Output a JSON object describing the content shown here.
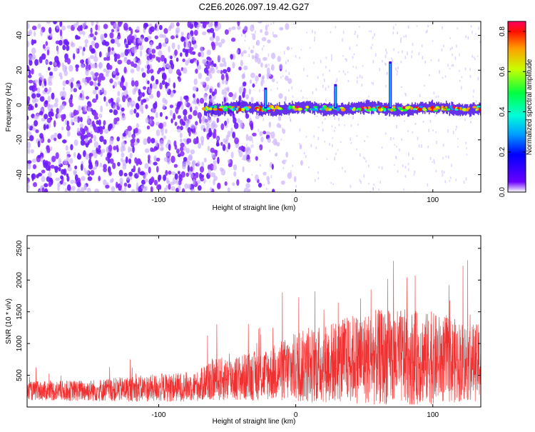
{
  "title": "C2E6.2026.097.19.42.G27",
  "colors": {
    "snr_line": "#f03030",
    "axis": "#000000",
    "background": "#ffffff"
  },
  "chart_data": [
    {
      "type": "heatmap",
      "name": "spectrogram",
      "xlabel": "Height of straight line (km)",
      "ylabel": "Frequency (Hz)",
      "xlim": [
        -196,
        135
      ],
      "ylim": [
        -50,
        48
      ],
      "xticks": [
        -100,
        0,
        100
      ],
      "yticks": [
        -40,
        -20,
        0,
        20,
        40
      ],
      "colorbar": {
        "label": "Normalized spectral amplitude",
        "range": [
          0.0,
          0.85
        ],
        "ticks": [
          0.0,
          0.2,
          0.4,
          0.6,
          0.8
        ]
      },
      "features": {
        "noise_region_x": [
          -196,
          -30
        ],
        "signal_band_start_x": -67,
        "signal_band_freq": -2,
        "spikes": [
          {
            "x": -22,
            "freq": 10
          },
          {
            "x": 29,
            "freq": 12
          },
          {
            "x": 69,
            "freq": 25
          }
        ]
      }
    },
    {
      "type": "line",
      "name": "snr",
      "xlabel": "Height of straight line (km)",
      "ylabel": "SNR (10 * v/v)",
      "xlim": [
        -196,
        135
      ],
      "ylim": [
        0,
        2700
      ],
      "xticks": [
        -100,
        0,
        100
      ],
      "yticks": [
        500,
        1000,
        1500,
        2000,
        2500
      ],
      "envelope": {
        "x": [
          -196,
          -150,
          -100,
          -70,
          -65,
          -40,
          -20,
          0,
          20,
          40,
          60,
          80,
          100,
          120,
          135
        ],
        "mean": [
          250,
          260,
          300,
          330,
          420,
          460,
          520,
          620,
          680,
          760,
          780,
          780,
          760,
          720,
          700
        ],
        "spread": [
          150,
          170,
          220,
          240,
          330,
          370,
          420,
          560,
          620,
          700,
          760,
          760,
          720,
          650,
          600
        ]
      }
    }
  ]
}
